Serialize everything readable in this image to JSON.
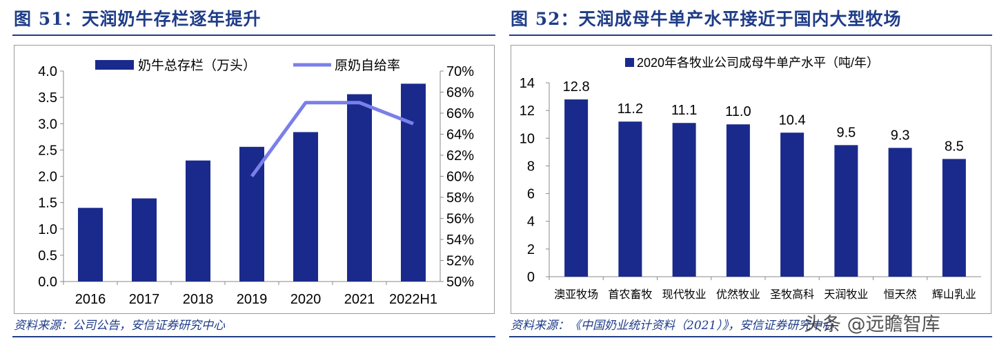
{
  "left": {
    "title": "图 51：天润奶牛存栏逐年提升",
    "source": "资料来源：公司公告，安信证券研究中心"
  },
  "right": {
    "title": "图 52：天润成母牛单产水平接近于国内大型牧场",
    "source": "资料来源：《中国奶业统计资料（2021）》，安信证券研究中心"
  },
  "watermark": "头条 @远瞻智库",
  "chart_data": [
    {
      "type": "bar",
      "categories": [
        "2016",
        "2017",
        "2018",
        "2019",
        "2020",
        "2021",
        "2022H1"
      ],
      "series": [
        {
          "name": "奶牛总存栏（万头）",
          "type": "bar",
          "axis": "left",
          "color": "#1A2A8C",
          "values": [
            1.4,
            1.58,
            2.3,
            2.56,
            2.84,
            3.56,
            3.76
          ]
        },
        {
          "name": "原奶自给率",
          "type": "line",
          "axis": "right",
          "color": "#7A7FEA",
          "values": [
            null,
            null,
            null,
            0.6,
            0.67,
            0.67,
            0.65
          ]
        }
      ],
      "ylim_left": [
        0,
        4
      ],
      "yticks_left": [
        "0.0",
        "0.5",
        "1.0",
        "1.5",
        "2.0",
        "2.5",
        "3.0",
        "3.5",
        "4.0"
      ],
      "ylim_right": [
        0.5,
        0.7
      ],
      "yticks_right": [
        "50%",
        "52%",
        "54%",
        "56%",
        "58%",
        "60%",
        "62%",
        "64%",
        "66%",
        "68%",
        "70%"
      ],
      "legend": "top"
    },
    {
      "type": "bar",
      "categories": [
        "澳亚牧场",
        "首农畜牧",
        "现代牧业",
        "优然牧业",
        "圣牧高科",
        "天润牧业",
        "恒天然",
        "辉山乳业"
      ],
      "series": [
        {
          "name": "2020年各牧业公司成母牛单产水平（吨/年）",
          "color": "#1A2A8C",
          "values": [
            12.8,
            11.2,
            11.1,
            11.0,
            10.4,
            9.5,
            9.3,
            8.5
          ],
          "labels": [
            "12.8",
            "11.2",
            "11.1",
            "11.0",
            "10.4",
            "9.5",
            "9.3",
            "8.5"
          ]
        }
      ],
      "ylim": [
        0,
        14
      ],
      "yticks": [
        "0",
        "2",
        "4",
        "6",
        "8",
        "10",
        "12",
        "14"
      ],
      "legend": "top"
    }
  ]
}
